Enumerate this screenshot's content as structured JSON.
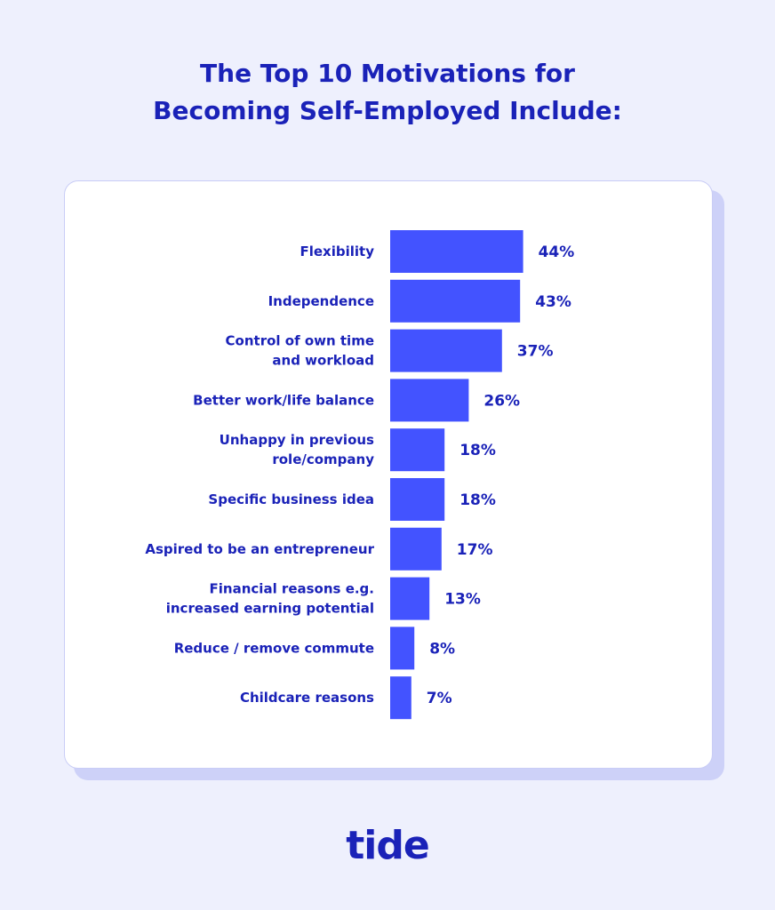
{
  "title_line1": "The Top 10 Motivations for",
  "title_line2": "Becoming Self-Employed Include:",
  "brand": "tide",
  "colors": {
    "background": "#eef0fd",
    "bar": "#4353ff",
    "text": "#1a22b8",
    "card": "#ffffff"
  },
  "chart_data": {
    "type": "bar",
    "orientation": "horizontal",
    "title": "The Top 10 Motivations for Becoming Self-Employed Include:",
    "categories": [
      [
        "Flexibility"
      ],
      [
        "Independence"
      ],
      [
        "Control of own time",
        "and workload"
      ],
      [
        "Better work/life balance"
      ],
      [
        "Unhappy in previous",
        "role/company"
      ],
      [
        "Specific business idea"
      ],
      [
        "Aspired to be an entrepreneur"
      ],
      [
        "Financial reasons e.g.",
        "increased earning potential"
      ],
      [
        "Reduce / remove commute"
      ],
      [
        "Childcare reasons"
      ]
    ],
    "values": [
      44,
      43,
      37,
      26,
      18,
      18,
      17,
      13,
      8,
      7
    ],
    "value_labels": [
      "44%",
      "43%",
      "37%",
      "26%",
      "18%",
      "18%",
      "17%",
      "13%",
      "8%",
      "7%"
    ],
    "unit": "%",
    "grid": false,
    "legend": "none"
  }
}
